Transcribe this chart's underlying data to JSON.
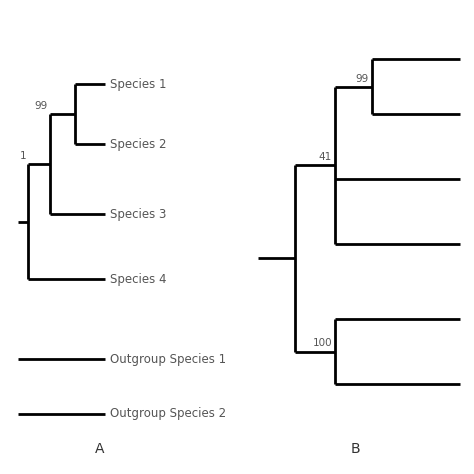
{
  "fig_width": 4.74,
  "fig_height": 4.74,
  "dpi": 100,
  "bg_color": "#ffffff",
  "tree_color": "#000000",
  "label_color": "#555555",
  "bootstrap_color": "#555555",
  "bootstrap_41_color": "#555555",
  "lw": 2.0,
  "panel_A": {
    "label": "A",
    "species": [
      "Species 1",
      "Species 2",
      "Species 3",
      "Species 4",
      "Outgroup Species 1",
      "Outgroup Species 2"
    ],
    "label_fs": 10,
    "species_fs": 8.5,
    "boot_fs": 7.5
  },
  "panel_B": {
    "label": "B",
    "label_fs": 10,
    "boot_fs": 7.5
  }
}
